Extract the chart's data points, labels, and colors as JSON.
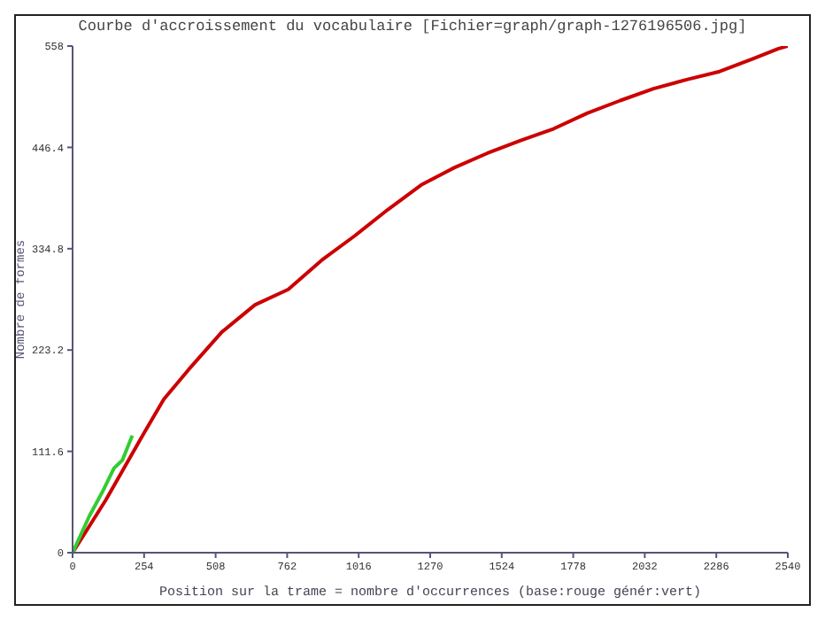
{
  "chart_data": {
    "type": "line",
    "title": "Courbe d'accroissement du vocabulaire [Fichier=graph/graph-1276196506.jpg]",
    "xlabel": "Position sur la trame = nombre d'occurrences (base:rouge génér:vert)",
    "ylabel": "Nombre de formes",
    "xlim": [
      0,
      2540
    ],
    "xticks": [
      0,
      254,
      508,
      762,
      1016,
      1270,
      1524,
      1778,
      2032,
      2286,
      2540
    ],
    "ylim": [
      0,
      558
    ],
    "yticks": [
      0,
      111.6,
      223.2,
      334.8,
      446.4,
      558
    ],
    "grid": false,
    "legend": false,
    "marker": "none",
    "line_style": "solid",
    "series": [
      {
        "color": "#cc0000",
        "x": [
          0,
          118,
          254,
          324,
          413,
          530,
          648,
          766,
          884,
          1002,
          1120,
          1238,
          1355,
          1473,
          1591,
          1709,
          1827,
          1945,
          2063,
          2181,
          2298,
          2416,
          2505,
          2540
        ],
        "values": [
          0,
          58,
          132,
          169,
          202,
          243,
          273,
          290,
          322,
          349,
          378,
          405,
          424,
          440,
          454,
          467,
          484,
          498,
          511,
          521,
          530,
          544,
          555,
          558
        ]
      },
      {
        "color": "#33cc33",
        "x": [
          0,
          59,
          106,
          147,
          177,
          212
        ],
        "values": [
          0,
          40,
          67,
          93,
          102,
          129
        ]
      }
    ]
  }
}
